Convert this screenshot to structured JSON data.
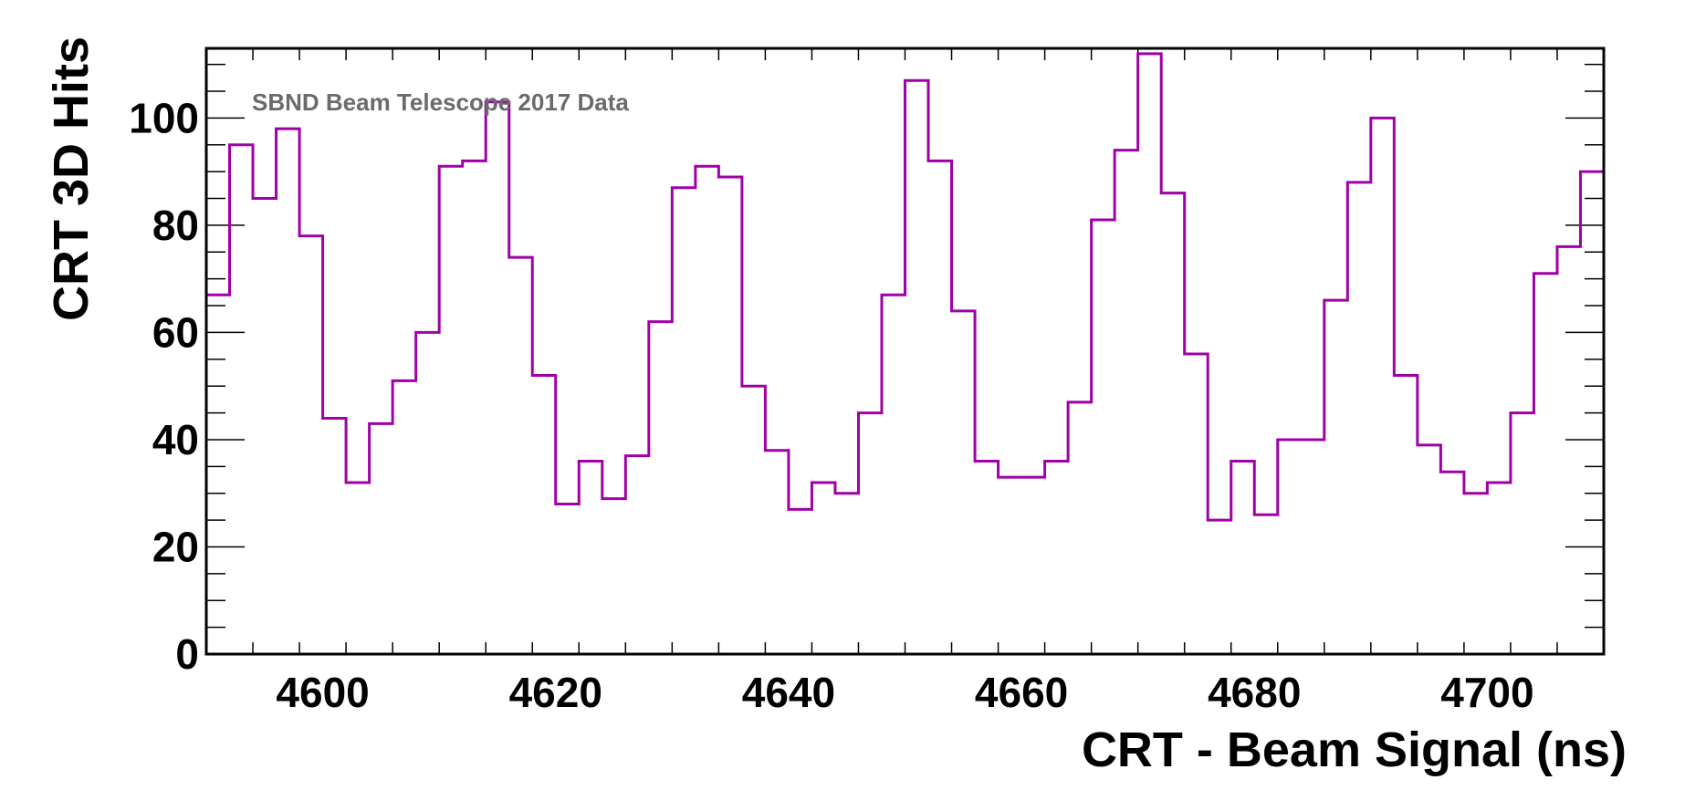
{
  "chart_data": {
    "type": "histogram",
    "annotation": "SBND Beam Telescope 2017 Data",
    "xlabel": "CRT - Beam Signal (ns)",
    "ylabel": "CRT 3D Hits",
    "xlim": [
      4590,
      4710
    ],
    "ylim": [
      0,
      113
    ],
    "bin_width": 2,
    "bin_start": 4590,
    "x_ticks": [
      4600,
      4620,
      4640,
      4660,
      4680,
      4700
    ],
    "y_ticks": [
      0,
      20,
      40,
      60,
      80,
      100
    ],
    "line_color": "#a000a8",
    "values": [
      67,
      95,
      85,
      98,
      78,
      44,
      32,
      43,
      51,
      60,
      91,
      92,
      103,
      74,
      52,
      28,
      36,
      29,
      37,
      62,
      87,
      91,
      89,
      50,
      38,
      27,
      32,
      30,
      45,
      67,
      107,
      92,
      64,
      36,
      33,
      33,
      36,
      47,
      81,
      94,
      112,
      86,
      56,
      25,
      36,
      26,
      40,
      40,
      66,
      88,
      100,
      52,
      39,
      34,
      30,
      32,
      45,
      71,
      76,
      90
    ]
  }
}
